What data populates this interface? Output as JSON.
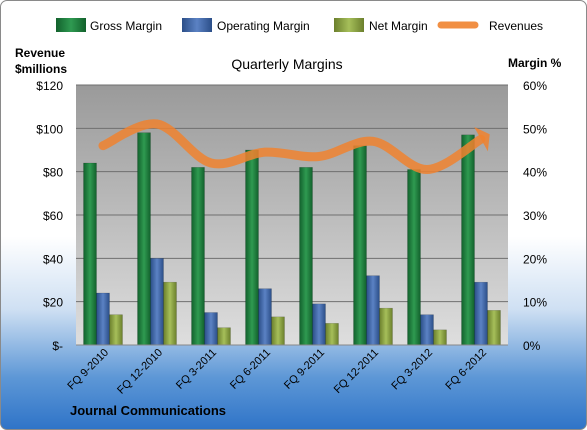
{
  "chart_data": {
    "type": "bar",
    "title": "Quarterly Margins",
    "left_axis_title": [
      "Revenue",
      "$millions"
    ],
    "right_axis_title": "Margin %",
    "footer": "Journal Communications",
    "categories": [
      "FQ 9-2010",
      "FQ 12-2010",
      "FQ 3-2011",
      "FQ 6-2011",
      "FQ 9-2011",
      "FQ 12-2011",
      "FQ 3-2012",
      "FQ 6-2012"
    ],
    "left_axis": {
      "min": 0,
      "max": 120,
      "step": 20,
      "tick_labels": [
        "$-",
        "$20",
        "$40",
        "$60",
        "$80",
        "$100",
        "$120"
      ]
    },
    "right_axis": {
      "min": 0,
      "max": 60,
      "step": 10,
      "tick_labels": [
        "0%",
        "10%",
        "20%",
        "30%",
        "40%",
        "50%",
        "60%"
      ]
    },
    "grid": true,
    "legend_position": "top",
    "series": [
      {
        "name": "Gross Margin",
        "type": "bar",
        "axis": "right",
        "color": "#1f7a3d",
        "values": [
          42,
          49,
          41,
          45,
          41,
          46,
          40.5,
          48.5
        ]
      },
      {
        "name": "Operating Margin",
        "type": "bar",
        "axis": "right",
        "color": "#3e66a8",
        "values": [
          12,
          20,
          7.5,
          13,
          9.5,
          16,
          7,
          14.5
        ]
      },
      {
        "name": "Net Margin",
        "type": "bar",
        "axis": "right",
        "color": "#8aa043",
        "values": [
          7,
          14.5,
          4,
          6.5,
          5,
          8.5,
          3.5,
          8
        ]
      },
      {
        "name": "Revenues",
        "type": "line",
        "axis": "left",
        "color": "#f0832f",
        "values": [
          92,
          102,
          84,
          89,
          87,
          94,
          81,
          95
        ]
      }
    ]
  }
}
